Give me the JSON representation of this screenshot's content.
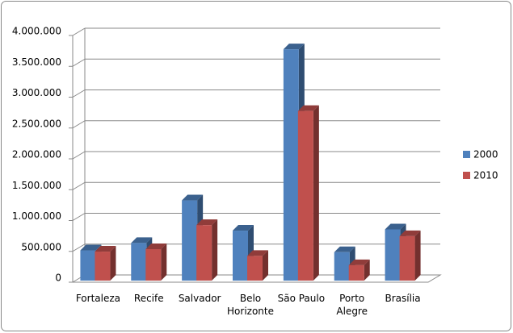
{
  "chart_data": {
    "type": "bar3d",
    "categories": [
      "Fortaleza",
      "Recife",
      "Salvador",
      "Belo Horizonte",
      "São Paulo",
      "Porto Alegre",
      "Brasília"
    ],
    "series": [
      {
        "name": "2000",
        "color": "#4f81bd",
        "values": [
          490000,
          610000,
          1300000,
          810000,
          3750000,
          460000,
          830000
        ]
      },
      {
        "name": "2010",
        "color": "#c0504d",
        "values": [
          470000,
          510000,
          900000,
          400000,
          2750000,
          250000,
          720000
        ]
      }
    ],
    "ylim": [
      0,
      4000000
    ],
    "yticks": [
      0,
      {
        "value": 500000,
        "label": "500.000"
      },
      {
        "value": 1000000,
        "label": "1.000.000"
      },
      {
        "value": 1500000,
        "label": "1.500.000"
      },
      {
        "value": 2000000,
        "label": "2.000.000"
      },
      {
        "value": 2500000,
        "label": "2.500.000"
      },
      {
        "value": 3000000,
        "label": "3.000.000"
      },
      {
        "value": 3500000,
        "label": "3.500.000"
      },
      {
        "value": 4000000,
        "label": "4.000.000"
      }
    ],
    "grid": true,
    "legend": "right"
  }
}
